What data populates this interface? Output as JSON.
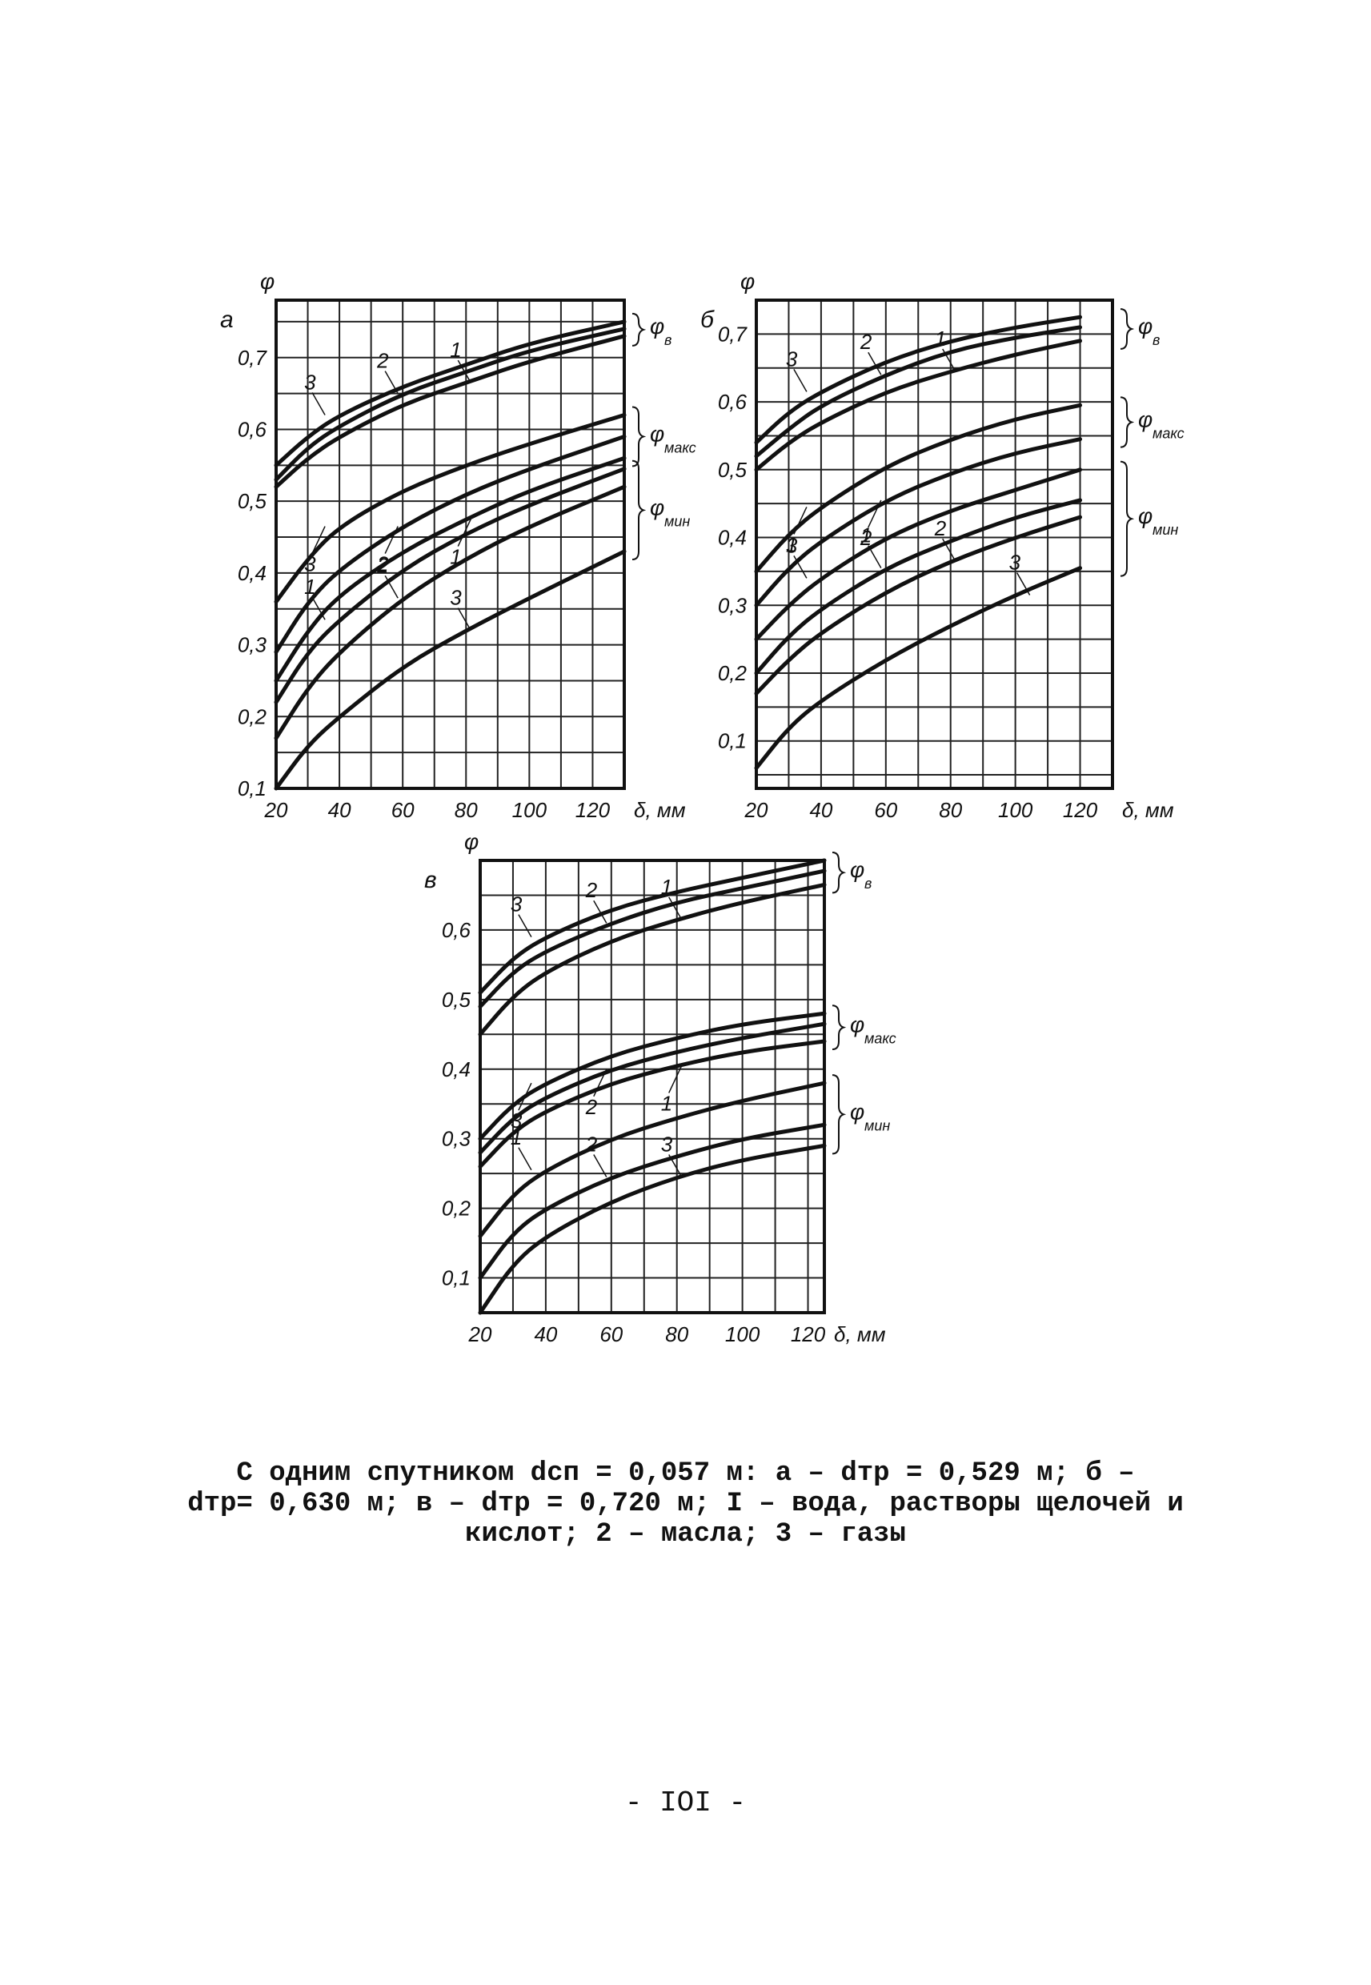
{
  "chart_data": [
    {
      "type": "line",
      "panel_label": "а",
      "ylabel": "φ",
      "xlabel": "δ, мм",
      "x_ticks": [
        "20",
        "40",
        "60",
        "80",
        "100",
        "120"
      ],
      "y_ticks": [
        "0,1",
        "0,2",
        "0,3",
        "0,4",
        "0,5",
        "0,6",
        "0,7"
      ],
      "xlim": [
        20,
        130
      ],
      "ylim": [
        0.1,
        0.78
      ],
      "grid": true,
      "x": [
        20,
        30,
        40,
        60,
        80,
        100,
        130
      ],
      "groups": [
        {
          "label": "φ",
          "sub": "в",
          "series": [
            {
              "name": "3",
              "values": [
                0.55,
                0.59,
                0.62,
                0.66,
                0.69,
                0.72,
                0.75
              ]
            },
            {
              "name": "2",
              "values": [
                0.53,
                0.575,
                0.605,
                0.65,
                0.68,
                0.71,
                0.74
              ]
            },
            {
              "name": "1",
              "values": [
                0.52,
                0.56,
                0.59,
                0.635,
                0.665,
                0.695,
                0.73
              ]
            }
          ]
        },
        {
          "label": "φ",
          "sub": "макс",
          "series": [
            {
              "name": "3",
              "values": [
                0.36,
                0.42,
                0.465,
                0.515,
                0.55,
                0.58,
                0.62
              ]
            },
            {
              "name": "2",
              "values": [
                0.29,
                0.36,
                0.405,
                0.465,
                0.51,
                0.545,
                0.59
              ]
            },
            {
              "name": "1",
              "values": [
                0.25,
                0.32,
                0.37,
                0.43,
                0.475,
                0.515,
                0.56
              ]
            }
          ]
        },
        {
          "label": "φ",
          "sub": "мин",
          "series": [
            {
              "name": "1",
              "values": [
                0.22,
                0.29,
                0.335,
                0.405,
                0.455,
                0.495,
                0.545
              ]
            },
            {
              "name": "2",
              "values": [
                0.17,
                0.24,
                0.29,
                0.365,
                0.42,
                0.465,
                0.52
              ]
            },
            {
              "name": "3",
              "values": [
                0.1,
                0.16,
                0.2,
                0.27,
                0.32,
                0.365,
                0.43
              ]
            }
          ]
        }
      ]
    },
    {
      "type": "line",
      "panel_label": "б",
      "ylabel": "φ",
      "xlabel": "δ, мм",
      "x_ticks": [
        "20",
        "40",
        "60",
        "80",
        "100",
        "120"
      ],
      "y_ticks": [
        "0,1",
        "0,2",
        "0,3",
        "0,4",
        "0,5",
        "0,6",
        "0,7"
      ],
      "xlim": [
        20,
        130
      ],
      "ylim": [
        0.03,
        0.75
      ],
      "grid": true,
      "x": [
        20,
        30,
        40,
        60,
        80,
        100,
        120
      ],
      "groups": [
        {
          "label": "φ",
          "sub": "в",
          "series": [
            {
              "name": "3",
              "values": [
                0.54,
                0.585,
                0.615,
                0.66,
                0.69,
                0.71,
                0.725
              ]
            },
            {
              "name": "2",
              "values": [
                0.52,
                0.56,
                0.595,
                0.64,
                0.675,
                0.695,
                0.71
              ]
            },
            {
              "name": "1",
              "values": [
                0.5,
                0.54,
                0.57,
                0.615,
                0.645,
                0.67,
                0.69
              ]
            }
          ]
        },
        {
          "label": "φ",
          "sub": "макс",
          "series": [
            {
              "name": "1",
              "values": [
                0.35,
                0.405,
                0.445,
                0.505,
                0.545,
                0.575,
                0.595
              ]
            },
            {
              "name": "2",
              "values": [
                0.3,
                0.355,
                0.395,
                0.455,
                0.495,
                0.525,
                0.545
              ]
            }
          ]
        },
        {
          "label": "φ",
          "sub": "мин",
          "series": [
            {
              "name": "3",
              "values": [
                0.25,
                0.3,
                0.34,
                0.4,
                0.44,
                0.47,
                0.5
              ]
            },
            {
              "name": "1",
              "values": [
                0.2,
                0.255,
                0.295,
                0.355,
                0.395,
                0.43,
                0.455
              ]
            },
            {
              "name": "2",
              "values": [
                0.17,
                0.22,
                0.26,
                0.32,
                0.365,
                0.4,
                0.43
              ]
            },
            {
              "name": "3",
              "values": [
                0.06,
                0.12,
                0.16,
                0.22,
                0.27,
                0.315,
                0.355
              ]
            }
          ]
        }
      ]
    },
    {
      "type": "line",
      "panel_label": "в",
      "ylabel": "φ",
      "xlabel": "δ, мм",
      "x_ticks": [
        "20",
        "40",
        "60",
        "80",
        "100",
        "120"
      ],
      "y_ticks": [
        "0,1",
        "0,2",
        "0,3",
        "0,4",
        "0,5",
        "0,6"
      ],
      "xlim": [
        20,
        125
      ],
      "ylim": [
        0.05,
        0.7
      ],
      "grid": true,
      "x": [
        20,
        30,
        40,
        60,
        80,
        100,
        125
      ],
      "groups": [
        {
          "label": "φ",
          "sub": "в",
          "series": [
            {
              "name": "3",
              "values": [
                0.51,
                0.56,
                0.59,
                0.63,
                0.655,
                0.675,
                0.7
              ]
            },
            {
              "name": "2",
              "values": [
                0.49,
                0.54,
                0.57,
                0.61,
                0.64,
                0.66,
                0.685
              ]
            },
            {
              "name": "1",
              "values": [
                0.45,
                0.505,
                0.54,
                0.585,
                0.615,
                0.64,
                0.665
              ]
            }
          ]
        },
        {
          "label": "φ",
          "sub": "макс",
          "series": [
            {
              "name": "3",
              "values": [
                0.3,
                0.35,
                0.38,
                0.42,
                0.445,
                0.465,
                0.48
              ]
            },
            {
              "name": "2",
              "values": [
                0.28,
                0.33,
                0.36,
                0.4,
                0.425,
                0.445,
                0.465
              ]
            },
            {
              "name": "1",
              "values": [
                0.26,
                0.31,
                0.34,
                0.38,
                0.405,
                0.425,
                0.44
              ]
            }
          ]
        },
        {
          "label": "φ",
          "sub": "мин",
          "series": [
            {
              "name": "1",
              "values": [
                0.16,
                0.22,
                0.255,
                0.3,
                0.33,
                0.355,
                0.38
              ]
            },
            {
              "name": "2",
              "values": [
                0.1,
                0.165,
                0.2,
                0.245,
                0.275,
                0.3,
                0.32
              ]
            },
            {
              "name": "3",
              "values": [
                0.05,
                0.12,
                0.16,
                0.21,
                0.245,
                0.27,
                0.29
              ]
            }
          ]
        }
      ]
    }
  ],
  "caption": {
    "line1": "С одним спутником dсп = 0,057 м: а – dтр = 0,529 м;  б –",
    "line2": "dтр= 0,630 м; в – dтр = 0,720 м; I – вода, растворы щелочей и",
    "line3": "кислот; 2 – масла; 3 – газы"
  },
  "page_number": "- IOI -"
}
